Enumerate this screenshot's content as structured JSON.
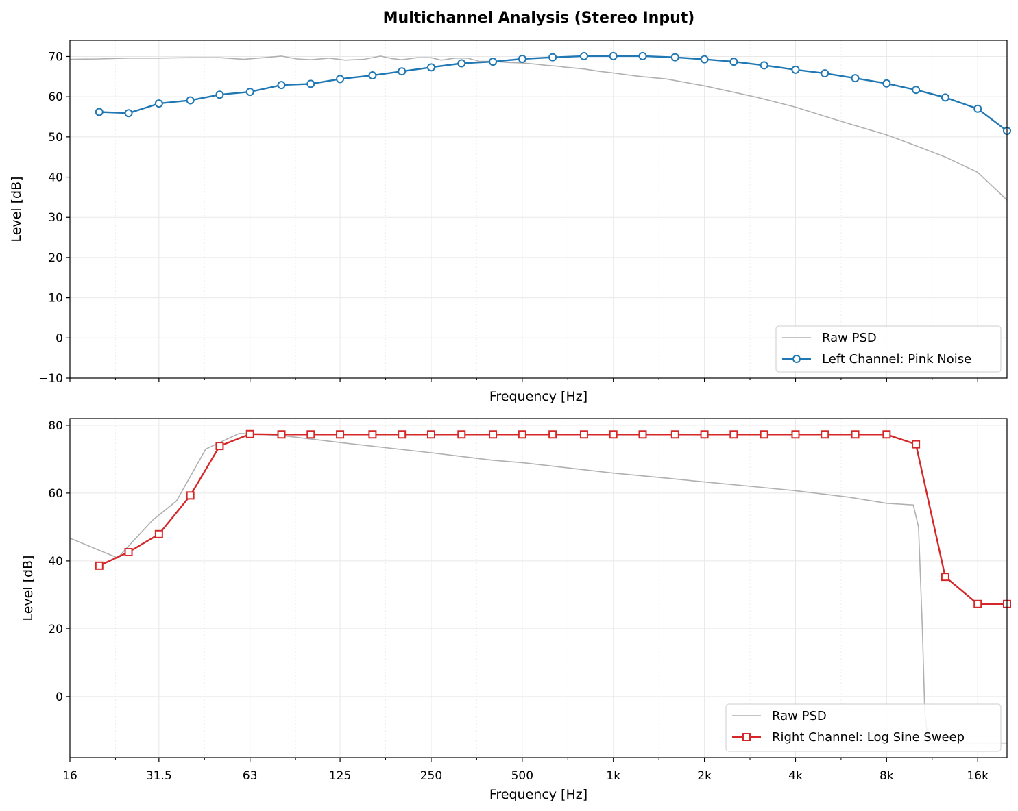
{
  "title": "Multichannel Analysis (Stereo Input)",
  "colors": {
    "raw": "#b0b0b0",
    "left": "#1f77b4",
    "right": "#d62728",
    "grid": "#e8e8e8"
  },
  "chart_data": [
    {
      "type": "line",
      "name": "top",
      "xlabel": "Frequency [Hz]",
      "ylabel": "Level [dB]",
      "xscale": "log",
      "xlim": [
        16,
        20000
      ],
      "ylim": [
        -10,
        74
      ],
      "yticks": [
        -10,
        0,
        10,
        20,
        30,
        40,
        50,
        60,
        70
      ],
      "ytick_labels": [
        "−10",
        "0",
        "10",
        "20",
        "30",
        "40",
        "50",
        "60",
        "70"
      ],
      "legend_position": "lower-right",
      "series": [
        {
          "name": "Raw PSD",
          "kind": "raw",
          "color": "#b0b0b0",
          "x": [
            16,
            20,
            25,
            31.5,
            40,
            50,
            60,
            70,
            80,
            90,
            100,
            115,
            130,
            150,
            170,
            185,
            200,
            225,
            250,
            270,
            300,
            330,
            360,
            400,
            450,
            500,
            550,
            600,
            650,
            700,
            800,
            900,
            1000,
            1200,
            1500,
            2000,
            2500,
            3000,
            4000,
            5000,
            6000,
            8000,
            10000,
            12500,
            16000,
            20000
          ],
          "y": [
            69.3,
            69.4,
            69.6,
            69.6,
            69.7,
            69.7,
            69.3,
            69.7,
            70.1,
            69.4,
            69.2,
            69.6,
            69.1,
            69.3,
            70.1,
            69.5,
            69.2,
            69.7,
            69.7,
            69.1,
            69.6,
            69.6,
            68.8,
            68.8,
            68.5,
            68.4,
            68.1,
            67.8,
            67.6,
            67.3,
            66.9,
            66.3,
            65.9,
            65.1,
            64.4,
            62.7,
            61.1,
            59.8,
            57.4,
            55.1,
            53.3,
            50.5,
            47.8,
            45.0,
            41.2,
            34.3
          ]
        },
        {
          "name": "Left Channel: Pink Noise",
          "kind": "left",
          "marker": "circle",
          "color": "#1f77b4",
          "x": [
            20,
            25,
            31.5,
            40,
            50,
            63,
            80,
            100,
            125,
            160,
            200,
            250,
            315,
            400,
            500,
            630,
            800,
            1000,
            1250,
            1600,
            2000,
            2500,
            3150,
            4000,
            5000,
            6300,
            8000,
            10000,
            12500,
            16000,
            20000
          ],
          "y": [
            56.2,
            55.9,
            58.3,
            59.1,
            60.5,
            61.2,
            62.9,
            63.2,
            64.4,
            65.3,
            66.3,
            67.3,
            68.3,
            68.7,
            69.4,
            69.8,
            70.1,
            70.1,
            70.1,
            69.8,
            69.3,
            68.7,
            67.8,
            66.7,
            65.8,
            64.6,
            63.3,
            61.7,
            59.8,
            57.0,
            51.5
          ]
        }
      ]
    },
    {
      "type": "line",
      "name": "bottom",
      "xlabel": "Frequency [Hz]",
      "ylabel": "Level [dB]",
      "xscale": "log",
      "xlim": [
        16,
        20000
      ],
      "ylim": [
        -18,
        82
      ],
      "yticks": [
        0,
        20,
        40,
        60,
        80
      ],
      "ytick_labels": [
        "0",
        "20",
        "40",
        "60",
        "80"
      ],
      "xticks": [
        16,
        31.5,
        63,
        125,
        250,
        500,
        1000,
        2000,
        4000,
        8000,
        16000
      ],
      "xtick_labels": [
        "16",
        "31.5",
        "63",
        "125",
        "250",
        "500",
        "1k",
        "2k",
        "4k",
        "8k",
        "16k"
      ],
      "legend_position": "lower-right",
      "series": [
        {
          "name": "Raw PSD",
          "kind": "raw",
          "color": "#b0b0b0",
          "x": [
            16,
            23,
            30,
            36,
            45,
            58,
            65,
            80,
            125,
            250,
            400,
            500,
            700,
            1000,
            1500,
            2000,
            3000,
            4000,
            6000,
            8000,
            9800,
            10200,
            10500,
            10700,
            11000,
            20000
          ],
          "y": [
            46.7,
            40.9,
            52.0,
            57.7,
            73.0,
            77.6,
            77.4,
            77.0,
            74.9,
            71.9,
            69.7,
            69.0,
            67.5,
            65.9,
            64.4,
            63.3,
            61.8,
            60.7,
            58.8,
            57.0,
            56.5,
            50.0,
            20.0,
            -5.0,
            -13.7,
            -13.7
          ]
        },
        {
          "name": "Right Channel: Log Sine Sweep",
          "kind": "right",
          "marker": "square",
          "color": "#d62728",
          "x": [
            20,
            25,
            31.5,
            40,
            50,
            63,
            80,
            100,
            125,
            160,
            200,
            250,
            315,
            400,
            500,
            630,
            800,
            1000,
            1250,
            1600,
            2000,
            2500,
            3150,
            4000,
            5000,
            6300,
            8000,
            10000,
            12500,
            16000,
            20000
          ],
          "y": [
            38.6,
            42.6,
            47.9,
            59.3,
            73.9,
            77.4,
            77.3,
            77.3,
            77.3,
            77.3,
            77.3,
            77.3,
            77.3,
            77.3,
            77.3,
            77.3,
            77.3,
            77.3,
            77.3,
            77.3,
            77.3,
            77.3,
            77.3,
            77.3,
            77.3,
            77.3,
            77.3,
            74.4,
            35.3,
            27.3,
            27.3
          ]
        }
      ]
    }
  ]
}
